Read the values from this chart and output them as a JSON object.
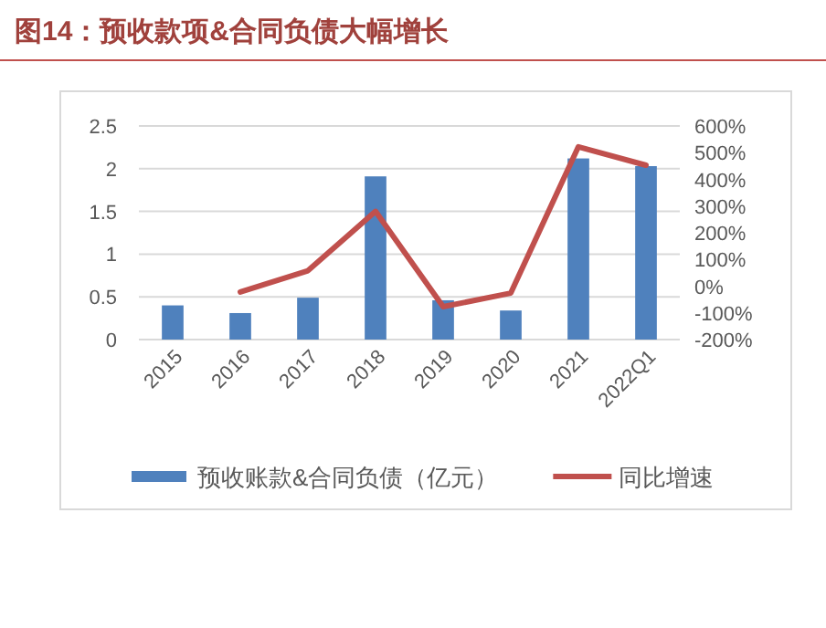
{
  "chart_data": {
    "type": "bar",
    "title": "图14：预收款项&合同负债大幅增长",
    "categories": [
      "2015",
      "2016",
      "2017",
      "2018",
      "2019",
      "2020",
      "2021",
      "2022Q1"
    ],
    "series": [
      {
        "name": "预收账款&合同负债（亿元）",
        "color": "#4f81bd",
        "values": [
          0.4,
          0.31,
          0.49,
          1.91,
          0.46,
          0.34,
          2.12,
          2.03
        ]
      },
      {
        "name": "同比增速",
        "type": "line",
        "axis": "y2",
        "color": "#c0504d",
        "values": [
          null,
          -22,
          58,
          280,
          -77,
          -26,
          522,
          453
        ]
      }
    ],
    "ylim": [
      0,
      2.5
    ],
    "yticks": [
      0,
      0.5,
      1,
      1.5,
      2,
      2.5
    ],
    "y2lim": [
      -200,
      600
    ],
    "y2ticks": [
      {
        "value": -200,
        "label": "-200%"
      },
      {
        "value": -100,
        "label": "-100%"
      },
      {
        "value": 0,
        "label": "0%"
      },
      {
        "value": 100,
        "label": "100%"
      },
      {
        "value": 200,
        "label": "200%"
      },
      {
        "value": 300,
        "label": "300%"
      },
      {
        "value": 400,
        "label": "400%"
      },
      {
        "value": 500,
        "label": "500%"
      },
      {
        "value": 600,
        "label": "600%"
      }
    ],
    "grid": "y",
    "legend": "bottom"
  }
}
